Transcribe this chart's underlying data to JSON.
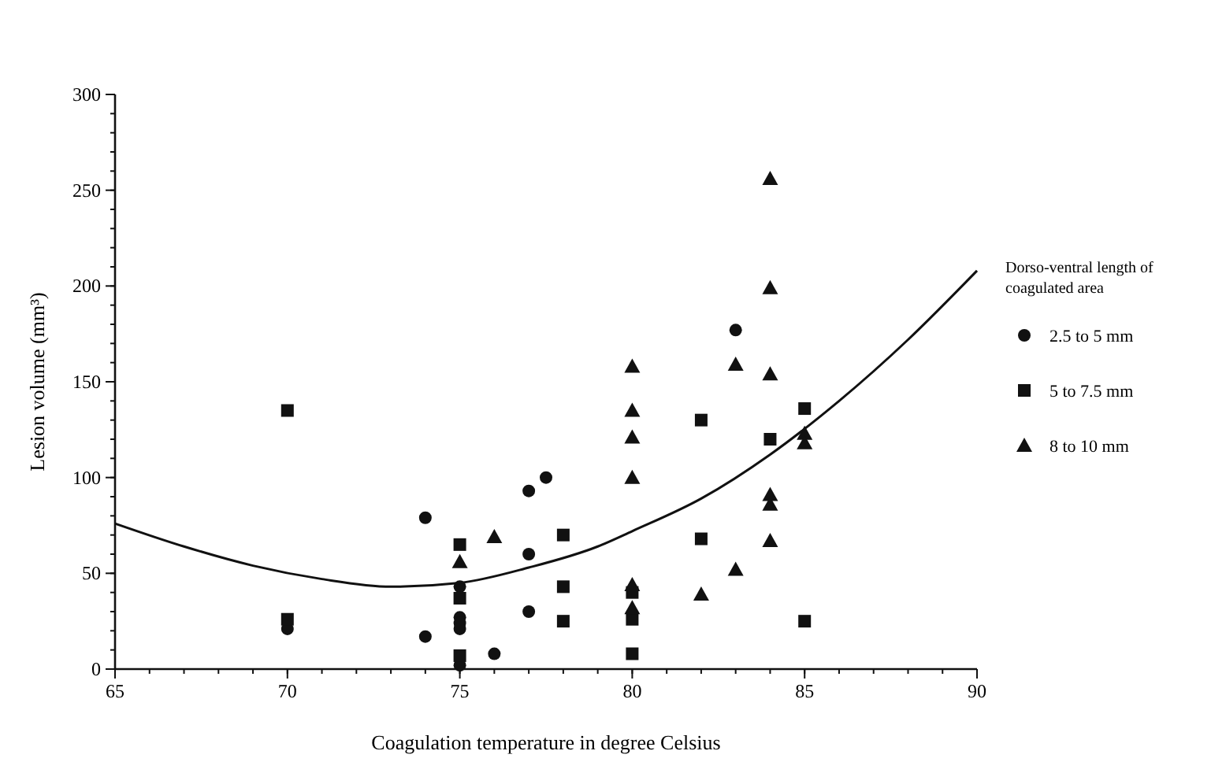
{
  "chart_data": {
    "type": "scatter",
    "xlabel": "Coagulation  temperature in degree Celsius",
    "ylabel": "Lesion volume (mm³)",
    "legend_title": "Dorso-ventral length of coagulated area",
    "legend": "right",
    "grid": false,
    "xlim": [
      65,
      90
    ],
    "xticks": [
      65,
      70,
      75,
      80,
      85,
      90
    ],
    "ylim": [
      0,
      300
    ],
    "yticks": [
      0,
      50,
      100,
      150,
      200,
      250,
      300
    ],
    "series": [
      {
        "name": "2.5 to 5 mm",
        "color": "#111111",
        "marker": "circle",
        "x": [
          70,
          74,
          74,
          75,
          75,
          75,
          75,
          75,
          76,
          77,
          77,
          77,
          77.5,
          83
        ],
        "values": [
          21,
          79,
          17,
          43,
          27,
          24,
          21,
          2,
          8,
          30,
          60,
          93,
          100,
          177
        ]
      },
      {
        "name": "5 to 7.5 mm",
        "color": "#111111",
        "marker": "square",
        "x": [
          70,
          70,
          75,
          75,
          75,
          78,
          78,
          78,
          80,
          80,
          80,
          82,
          82,
          84,
          85,
          85
        ],
        "values": [
          135,
          26,
          65,
          37,
          7,
          70,
          43,
          25,
          40,
          26,
          8,
          130,
          68,
          120,
          136,
          25
        ]
      },
      {
        "name": "8 to 10 mm",
        "color": "#111111",
        "marker": "triangle",
        "x": [
          75,
          76,
          80,
          80,
          80,
          80,
          80,
          80,
          82,
          83,
          83,
          84,
          84,
          84,
          84,
          84,
          84,
          85,
          85
        ],
        "values": [
          56,
          69,
          158,
          135,
          121,
          100,
          44,
          32,
          39,
          159,
          52,
          256,
          199,
          154,
          91,
          86,
          67,
          123,
          118
        ]
      },
      {
        "type": "line",
        "color": "#111111",
        "marker": "none",
        "x": [
          65,
          67,
          69,
          71,
          73,
          75,
          77,
          79,
          80,
          82,
          84,
          86,
          88,
          90
        ],
        "values": [
          76,
          64,
          54,
          47,
          43,
          45,
          53,
          64,
          72,
          89,
          112,
          140,
          172,
          208
        ]
      }
    ]
  }
}
